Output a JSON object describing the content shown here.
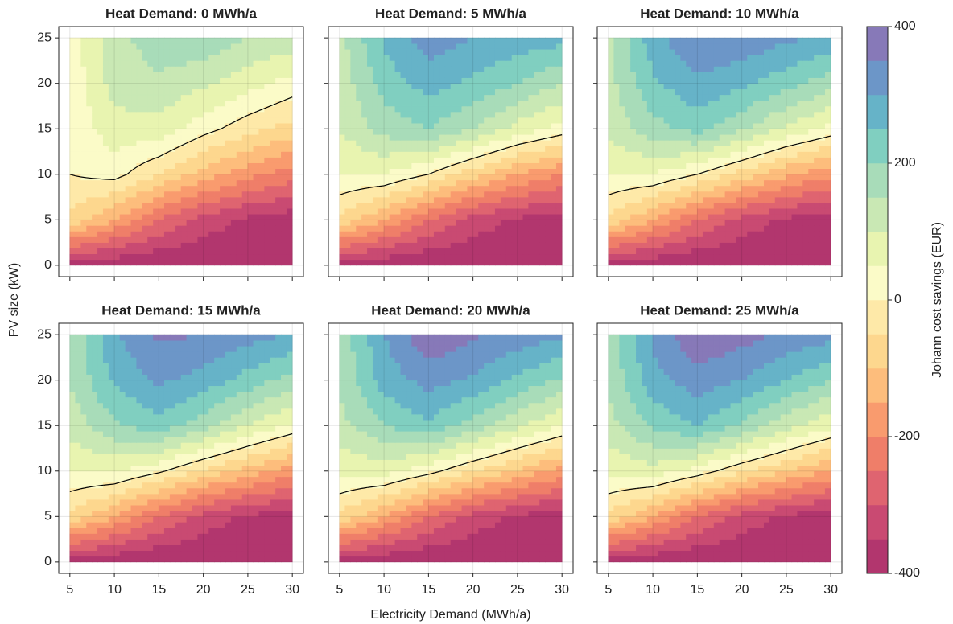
{
  "chart_data": {
    "type": "contour",
    "xlabel": "Electricity Demand (MWh/a)",
    "ylabel": "PV size (kW)",
    "x": [
      5,
      10,
      15,
      20,
      25,
      30
    ],
    "y": [
      0,
      5,
      10,
      15,
      20,
      25
    ],
    "xlim": [
      3.75,
      31.25
    ],
    "ylim": [
      -1.25,
      26.25
    ],
    "xticks": [
      5,
      10,
      15,
      20,
      25,
      30
    ],
    "yticks": [
      0,
      5,
      10,
      15,
      20,
      25
    ],
    "grid": true,
    "contour_level": 0,
    "contour_color": "#000000",
    "colorbar": {
      "label": "Johann cost savings (EUR)",
      "lim": [
        -400,
        400
      ],
      "ticks": [
        -400,
        -200,
        0,
        200,
        400
      ],
      "levels": [
        -400,
        -350,
        -300,
        -250,
        -200,
        -150,
        -100,
        -50,
        0,
        50,
        100,
        150,
        200,
        250,
        300,
        350,
        400
      ],
      "colors": [
        "#b2366e",
        "#c94a72",
        "#df6470",
        "#ef7e69",
        "#f99b6e",
        "#fdbd7c",
        "#fdd78e",
        "#fee9a8",
        "#fbfbc8",
        "#e8f4b0",
        "#c9e8b4",
        "#a8dcb9",
        "#80cfc0",
        "#66b3c8",
        "#6c96c8",
        "#8779b8"
      ]
    },
    "panels": [
      {
        "title": "Heat Demand: 0 MWh/a",
        "z": [
          [
            -380,
            -390,
            -400,
            -400,
            -400,
            -400
          ],
          [
            -60,
            -150,
            -250,
            -320,
            -360,
            -380
          ],
          [
            0,
            20,
            -50,
            -120,
            -180,
            -230
          ],
          [
            10,
            80,
            80,
            20,
            -30,
            -70
          ],
          [
            15,
            120,
            140,
            110,
            70,
            30
          ],
          [
            20,
            130,
            180,
            190,
            150,
            130
          ]
        ]
      },
      {
        "title": "Heat Demand: 5 MWh/a",
        "z": [
          [
            -380,
            -390,
            -400,
            -400,
            -400,
            -400
          ],
          [
            -60,
            -150,
            -250,
            -320,
            -360,
            -380
          ],
          [
            50,
            50,
            0,
            -80,
            -150,
            -200
          ],
          [
            100,
            170,
            200,
            150,
            80,
            30
          ],
          [
            120,
            220,
            270,
            240,
            200,
            150
          ],
          [
            130,
            260,
            330,
            300,
            280,
            270
          ]
        ]
      },
      {
        "title": "Heat Demand: 10 MWh/a",
        "z": [
          [
            -380,
            -390,
            -400,
            -400,
            -400,
            -400
          ],
          [
            -60,
            -150,
            -250,
            -320,
            -360,
            -380
          ],
          [
            50,
            50,
            0,
            -70,
            -140,
            -190
          ],
          [
            110,
            180,
            220,
            160,
            90,
            35
          ],
          [
            130,
            240,
            290,
            260,
            220,
            170
          ],
          [
            140,
            280,
            350,
            340,
            310,
            290
          ]
        ]
      },
      {
        "title": "Heat Demand: 15 MWh/a",
        "z": [
          [
            -380,
            -390,
            -400,
            -400,
            -400,
            -400
          ],
          [
            -60,
            -150,
            -250,
            -320,
            -360,
            -380
          ],
          [
            50,
            60,
            10,
            -60,
            -120,
            -180
          ],
          [
            120,
            190,
            230,
            170,
            100,
            40
          ],
          [
            150,
            260,
            310,
            280,
            230,
            180
          ],
          [
            150,
            290,
            360,
            350,
            320,
            300
          ]
        ]
      },
      {
        "title": "Heat Demand: 20 MWh/a",
        "z": [
          [
            -380,
            -390,
            -400,
            -400,
            -400,
            -400
          ],
          [
            -60,
            -150,
            -250,
            -320,
            -360,
            -380
          ],
          [
            60,
            70,
            20,
            -50,
            -110,
            -170
          ],
          [
            130,
            200,
            240,
            180,
            110,
            50
          ],
          [
            160,
            270,
            320,
            290,
            240,
            190
          ],
          [
            160,
            300,
            390,
            360,
            330,
            310
          ]
        ]
      },
      {
        "title": "Heat Demand: 25 MWh/a",
        "z": [
          [
            -380,
            -390,
            -400,
            -400,
            -400,
            -400
          ],
          [
            -60,
            -150,
            -250,
            -320,
            -360,
            -380
          ],
          [
            60,
            80,
            30,
            -40,
            -100,
            -160
          ],
          [
            130,
            210,
            250,
            190,
            120,
            60
          ],
          [
            160,
            280,
            330,
            300,
            250,
            200
          ],
          [
            160,
            310,
            395,
            370,
            340,
            320
          ]
        ]
      }
    ]
  }
}
